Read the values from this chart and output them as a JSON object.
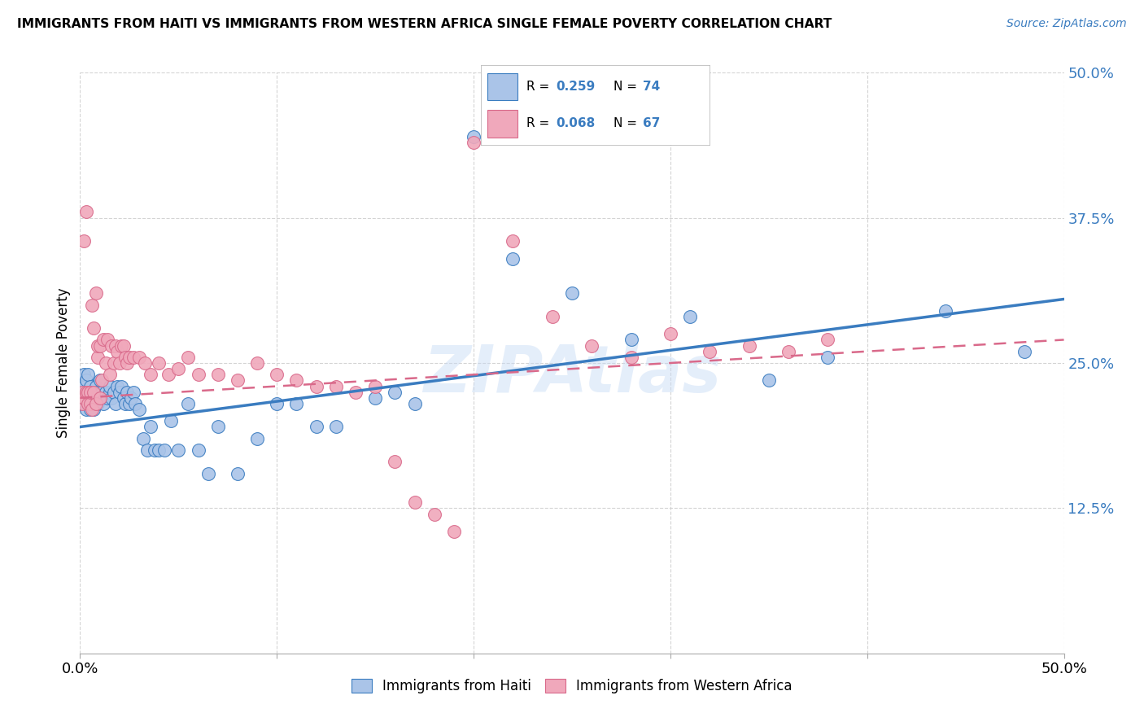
{
  "title": "IMMIGRANTS FROM HAITI VS IMMIGRANTS FROM WESTERN AFRICA SINGLE FEMALE POVERTY CORRELATION CHART",
  "source": "Source: ZipAtlas.com",
  "ylabel": "Single Female Poverty",
  "legend_label1": "Immigrants from Haiti",
  "legend_label2": "Immigrants from Western Africa",
  "R1": "0.259",
  "N1": "74",
  "R2": "0.068",
  "N2": "67",
  "color_haiti": "#aac4e8",
  "color_west_africa": "#f0a8bb",
  "color_haiti_line": "#3a7cc0",
  "color_west_africa_line": "#d9698a",
  "watermark": "ZIPAtlas",
  "xlim": [
    0.0,
    0.5
  ],
  "ylim": [
    0.0,
    0.5
  ],
  "yticks": [
    0.125,
    0.25,
    0.375,
    0.5
  ],
  "ytick_labels": [
    "12.5%",
    "25.0%",
    "37.5%",
    "50.0%"
  ],
  "xticks": [
    0.0,
    0.1,
    0.2,
    0.3,
    0.4,
    0.5
  ],
  "xtick_labels": [
    "0.0%",
    "",
    "",
    "",
    "",
    "50.0%"
  ],
  "haiti_x": [
    0.001,
    0.001,
    0.002,
    0.002,
    0.002,
    0.003,
    0.003,
    0.003,
    0.004,
    0.004,
    0.004,
    0.005,
    0.005,
    0.005,
    0.006,
    0.006,
    0.007,
    0.007,
    0.008,
    0.008,
    0.009,
    0.009,
    0.01,
    0.01,
    0.011,
    0.012,
    0.013,
    0.014,
    0.015,
    0.015,
    0.016,
    0.017,
    0.018,
    0.019,
    0.02,
    0.021,
    0.022,
    0.023,
    0.024,
    0.025,
    0.026,
    0.027,
    0.028,
    0.03,
    0.032,
    0.034,
    0.036,
    0.038,
    0.04,
    0.043,
    0.046,
    0.05,
    0.055,
    0.06,
    0.065,
    0.07,
    0.08,
    0.09,
    0.1,
    0.11,
    0.12,
    0.13,
    0.15,
    0.16,
    0.17,
    0.2,
    0.22,
    0.25,
    0.28,
    0.31,
    0.35,
    0.38,
    0.44,
    0.48
  ],
  "haiti_y": [
    0.215,
    0.225,
    0.22,
    0.23,
    0.24,
    0.21,
    0.225,
    0.235,
    0.215,
    0.225,
    0.24,
    0.21,
    0.22,
    0.23,
    0.215,
    0.225,
    0.21,
    0.225,
    0.215,
    0.23,
    0.215,
    0.225,
    0.22,
    0.235,
    0.225,
    0.215,
    0.225,
    0.22,
    0.225,
    0.23,
    0.22,
    0.225,
    0.215,
    0.23,
    0.225,
    0.23,
    0.22,
    0.215,
    0.225,
    0.215,
    0.22,
    0.225,
    0.215,
    0.21,
    0.185,
    0.175,
    0.195,
    0.175,
    0.175,
    0.175,
    0.2,
    0.175,
    0.215,
    0.175,
    0.155,
    0.195,
    0.155,
    0.185,
    0.215,
    0.215,
    0.195,
    0.195,
    0.22,
    0.225,
    0.215,
    0.445,
    0.34,
    0.31,
    0.27,
    0.29,
    0.235,
    0.255,
    0.295,
    0.26
  ],
  "west_x": [
    0.001,
    0.001,
    0.002,
    0.002,
    0.003,
    0.003,
    0.004,
    0.004,
    0.005,
    0.005,
    0.006,
    0.006,
    0.007,
    0.007,
    0.008,
    0.008,
    0.009,
    0.009,
    0.01,
    0.01,
    0.011,
    0.012,
    0.013,
    0.014,
    0.015,
    0.016,
    0.017,
    0.018,
    0.019,
    0.02,
    0.021,
    0.022,
    0.023,
    0.024,
    0.025,
    0.027,
    0.03,
    0.033,
    0.036,
    0.04,
    0.045,
    0.05,
    0.055,
    0.06,
    0.07,
    0.08,
    0.09,
    0.1,
    0.11,
    0.12,
    0.13,
    0.14,
    0.15,
    0.16,
    0.17,
    0.18,
    0.19,
    0.2,
    0.22,
    0.24,
    0.26,
    0.28,
    0.3,
    0.32,
    0.34,
    0.36,
    0.38
  ],
  "west_y": [
    0.215,
    0.225,
    0.22,
    0.355,
    0.38,
    0.225,
    0.215,
    0.225,
    0.215,
    0.225,
    0.3,
    0.21,
    0.225,
    0.28,
    0.215,
    0.31,
    0.255,
    0.265,
    0.22,
    0.265,
    0.235,
    0.27,
    0.25,
    0.27,
    0.24,
    0.265,
    0.25,
    0.265,
    0.26,
    0.25,
    0.265,
    0.265,
    0.255,
    0.25,
    0.255,
    0.255,
    0.255,
    0.25,
    0.24,
    0.25,
    0.24,
    0.245,
    0.255,
    0.24,
    0.24,
    0.235,
    0.25,
    0.24,
    0.235,
    0.23,
    0.23,
    0.225,
    0.23,
    0.165,
    0.13,
    0.12,
    0.105,
    0.44,
    0.355,
    0.29,
    0.265,
    0.255,
    0.275,
    0.26,
    0.265,
    0.26,
    0.27
  ],
  "haiti_line_x": [
    0.0,
    0.5
  ],
  "haiti_line_y": [
    0.195,
    0.305
  ],
  "west_line_x": [
    0.0,
    0.5
  ],
  "west_line_y": [
    0.22,
    0.27
  ]
}
